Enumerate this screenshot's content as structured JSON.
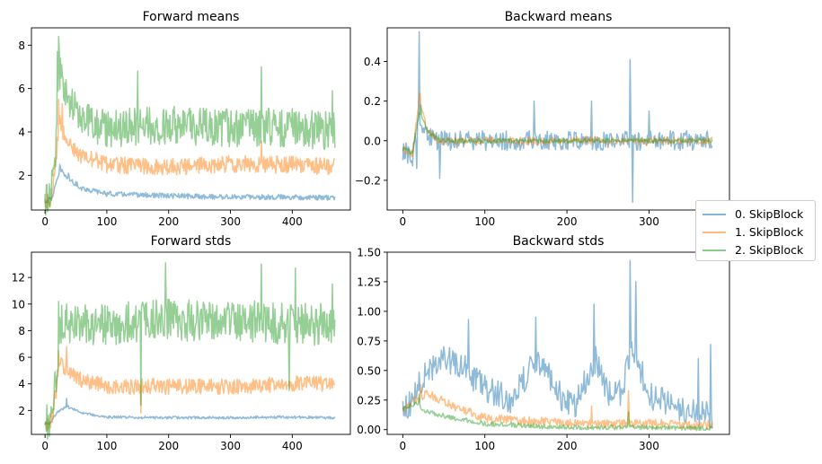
{
  "legend": {
    "entries": [
      {
        "label": "0. SkipBlock",
        "color": "#1f77b4"
      },
      {
        "label": "1. SkipBlock",
        "color": "#ff7f0e"
      },
      {
        "label": "2. SkipBlock",
        "color": "#2ca02c"
      }
    ]
  },
  "chart_data": [
    {
      "type": "line",
      "title": "Forward means",
      "xlabel": "",
      "ylabel": "",
      "xlim": [
        -22,
        494
      ],
      "ylim": [
        0.4,
        8.8
      ],
      "xticks": [
        0,
        100,
        200,
        300,
        400
      ],
      "yticks": [
        2,
        4,
        6,
        8
      ],
      "n_points": 470,
      "series": [
        {
          "name": "0. SkipBlock",
          "keypoints": [
            [
              0,
              0.8
            ],
            [
              10,
              0.9
            ],
            [
              18,
              1.6
            ],
            [
              25,
              2.3
            ],
            [
              35,
              1.9
            ],
            [
              60,
              1.4
            ],
            [
              100,
              1.15
            ],
            [
              200,
              1.05
            ],
            [
              300,
              1.0
            ],
            [
              400,
              1.0
            ],
            [
              470,
              0.95
            ]
          ],
          "noise": 0.12,
          "spikes": [
            [
              24,
              2.5
            ],
            [
              38,
              2.1
            ]
          ]
        },
        {
          "name": "1. SkipBlock",
          "keypoints": [
            [
              0,
              0.8
            ],
            [
              10,
              1.0
            ],
            [
              18,
              2.5
            ],
            [
              22,
              4.5
            ],
            [
              30,
              4.0
            ],
            [
              50,
              3.0
            ],
            [
              100,
              2.5
            ],
            [
              200,
              2.4
            ],
            [
              300,
              2.5
            ],
            [
              400,
              2.5
            ],
            [
              470,
              2.4
            ]
          ],
          "noise": 0.4,
          "spikes": [
            [
              22,
              5.5
            ],
            [
              28,
              5.3
            ],
            [
              350,
              3.6
            ]
          ]
        },
        {
          "name": "2. SkipBlock",
          "keypoints": [
            [
              0,
              0.8
            ],
            [
              10,
              1.2
            ],
            [
              18,
              3.5
            ],
            [
              22,
              7.0
            ],
            [
              28,
              6.5
            ],
            [
              40,
              5.5
            ],
            [
              60,
              4.5
            ],
            [
              100,
              4.2
            ],
            [
              200,
              4.3
            ],
            [
              300,
              4.2
            ],
            [
              400,
              4.2
            ],
            [
              470,
              4.0
            ]
          ],
          "noise": 0.9,
          "spikes": [
            [
              22,
              8.4
            ],
            [
              20,
              7.7
            ],
            [
              350,
              7.0
            ],
            [
              150,
              6.8
            ],
            [
              465,
              5.9
            ]
          ]
        }
      ]
    },
    {
      "type": "line",
      "title": "Backward means",
      "xlabel": "",
      "ylabel": "",
      "xlim": [
        -19,
        398
      ],
      "ylim": [
        -0.35,
        0.57
      ],
      "xticks": [
        0,
        100,
        200,
        300
      ],
      "yticks": [
        -0.2,
        0.0,
        0.2,
        0.4
      ],
      "n_points": 378,
      "series": [
        {
          "name": "0. SkipBlock",
          "keypoints": [
            [
              0,
              -0.05
            ],
            [
              12,
              -0.08
            ],
            [
              18,
              0.1
            ],
            [
              25,
              0.05
            ],
            [
              40,
              0.0
            ],
            [
              100,
              0.0
            ],
            [
              200,
              0.0
            ],
            [
              300,
              0.0
            ],
            [
              378,
              0.0
            ]
          ],
          "noise": 0.05,
          "spikes": [
            [
              20,
              0.55
            ],
            [
              17,
              -0.14
            ],
            [
              45,
              -0.19
            ],
            [
              280,
              -0.31
            ],
            [
              277,
              0.41
            ],
            [
              160,
              0.2
            ],
            [
              230,
              0.2
            ],
            [
              300,
              0.15
            ]
          ]
        },
        {
          "name": "1. SkipBlock",
          "keypoints": [
            [
              0,
              -0.04
            ],
            [
              12,
              -0.07
            ],
            [
              20,
              0.22
            ],
            [
              30,
              0.05
            ],
            [
              45,
              0.0
            ],
            [
              378,
              0.0
            ]
          ],
          "noise": 0.02,
          "spikes": [
            [
              21,
              0.24
            ]
          ]
        },
        {
          "name": "2. SkipBlock",
          "keypoints": [
            [
              0,
              -0.04
            ],
            [
              12,
              -0.06
            ],
            [
              20,
              0.15
            ],
            [
              30,
              0.05
            ],
            [
              45,
              0.0
            ],
            [
              378,
              0.0
            ]
          ],
          "noise": 0.012,
          "spikes": [
            [
              22,
              0.18
            ]
          ]
        }
      ]
    },
    {
      "type": "line",
      "title": "Forward stds",
      "xlabel": "",
      "ylabel": "",
      "xlim": [
        -22,
        494
      ],
      "ylim": [
        0.2,
        13.9
      ],
      "xticks": [
        0,
        100,
        200,
        300,
        400
      ],
      "yticks": [
        2,
        4,
        6,
        8,
        10,
        12
      ],
      "n_points": 470,
      "series": [
        {
          "name": "0. SkipBlock",
          "keypoints": [
            [
              0,
              1.0
            ],
            [
              10,
              1.1
            ],
            [
              18,
              1.8
            ],
            [
              35,
              2.3
            ],
            [
              60,
              1.8
            ],
            [
              100,
              1.5
            ],
            [
              200,
              1.45
            ],
            [
              300,
              1.45
            ],
            [
              400,
              1.5
            ],
            [
              470,
              1.45
            ]
          ],
          "noise": 0.1,
          "spikes": [
            [
              35,
              2.9
            ]
          ]
        },
        {
          "name": "1. SkipBlock",
          "keypoints": [
            [
              0,
              1.0
            ],
            [
              10,
              1.2
            ],
            [
              18,
              3.5
            ],
            [
              25,
              5.5
            ],
            [
              40,
              5.0
            ],
            [
              60,
              4.3
            ],
            [
              100,
              3.8
            ],
            [
              200,
              3.8
            ],
            [
              300,
              3.8
            ],
            [
              400,
              4.0
            ],
            [
              470,
              4.0
            ]
          ],
          "noise": 0.6,
          "spikes": [
            [
              22,
              6.5
            ],
            [
              35,
              6.8
            ],
            [
              155,
              1.8
            ]
          ]
        },
        {
          "name": "2. SkipBlock",
          "keypoints": [
            [
              0,
              1.0
            ],
            [
              10,
              1.5
            ],
            [
              18,
              5.0
            ],
            [
              25,
              8.5
            ],
            [
              40,
              8.5
            ],
            [
              100,
              8.5
            ],
            [
              200,
              8.8
            ],
            [
              300,
              8.8
            ],
            [
              400,
              8.5
            ],
            [
              470,
              8.5
            ]
          ],
          "noise": 1.6,
          "spikes": [
            [
              195,
              13.1
            ],
            [
              350,
              13.0
            ],
            [
              405,
              12.7
            ],
            [
              155,
              2.4
            ],
            [
              395,
              3.5
            ],
            [
              22,
              10.2
            ],
            [
              465,
              11.5
            ]
          ]
        }
      ]
    },
    {
      "type": "line",
      "title": "Backward stds",
      "xlabel": "",
      "ylabel": "",
      "xlim": [
        -19,
        398
      ],
      "ylim": [
        -0.04,
        1.5
      ],
      "xticks": [
        0,
        100,
        200,
        300
      ],
      "yticks": [
        0.0,
        0.25,
        0.5,
        0.75,
        1.0,
        1.25,
        1.5
      ],
      "n_points": 378,
      "series": [
        {
          "name": "0. SkipBlock",
          "keypoints": [
            [
              0,
              0.17
            ],
            [
              12,
              0.22
            ],
            [
              20,
              0.4
            ],
            [
              30,
              0.5
            ],
            [
              50,
              0.6
            ],
            [
              70,
              0.55
            ],
            [
              100,
              0.35
            ],
            [
              130,
              0.25
            ],
            [
              150,
              0.45
            ],
            [
              165,
              0.6
            ],
            [
              190,
              0.3
            ],
            [
              210,
              0.2
            ],
            [
              235,
              0.6
            ],
            [
              250,
              0.3
            ],
            [
              265,
              0.3
            ],
            [
              280,
              0.7
            ],
            [
              300,
              0.3
            ],
            [
              330,
              0.2
            ],
            [
              360,
              0.15
            ],
            [
              378,
              0.1
            ]
          ],
          "noise": 0.12,
          "spikes": [
            [
              80,
              0.93
            ],
            [
              162,
              0.95
            ],
            [
              233,
              1.06
            ],
            [
              277,
              1.43
            ],
            [
              284,
              1.25
            ],
            [
              360,
              0.6
            ],
            [
              375,
              0.72
            ]
          ]
        },
        {
          "name": "1. SkipBlock",
          "keypoints": [
            [
              0,
              0.17
            ],
            [
              15,
              0.25
            ],
            [
              30,
              0.3
            ],
            [
              60,
              0.2
            ],
            [
              100,
              0.1
            ],
            [
              200,
              0.05
            ],
            [
              300,
              0.05
            ],
            [
              378,
              0.04
            ]
          ],
          "noise": 0.04,
          "spikes": [
            [
              22,
              0.38
            ],
            [
              275,
              0.33
            ],
            [
              230,
              0.2
            ]
          ]
        },
        {
          "name": "2. SkipBlock",
          "keypoints": [
            [
              0,
              0.17
            ],
            [
              15,
              0.22
            ],
            [
              30,
              0.15
            ],
            [
              60,
              0.1
            ],
            [
              100,
              0.05
            ],
            [
              200,
              0.02
            ],
            [
              300,
              0.02
            ],
            [
              378,
              0.01
            ]
          ],
          "noise": 0.02,
          "spikes": [
            [
              20,
              0.3
            ],
            [
              275,
              0.15
            ]
          ]
        }
      ]
    }
  ]
}
